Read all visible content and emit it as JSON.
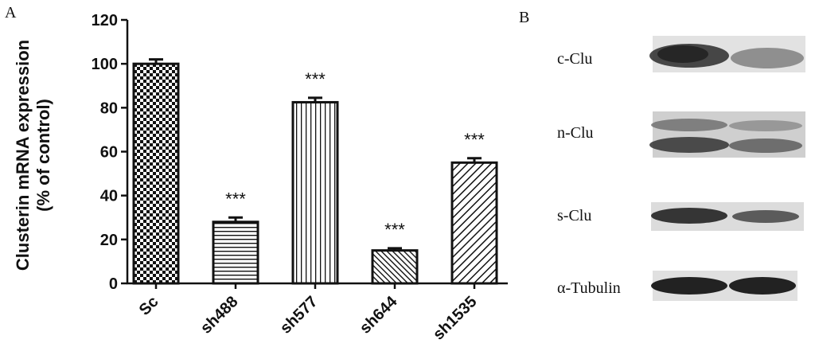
{
  "panel_a_label": "A",
  "panel_b_label": "B",
  "chart_data": {
    "type": "bar",
    "ylabel_line1": "Clusterin mRNA expression",
    "ylabel_line2": "(% of control)",
    "ylim": [
      0,
      120
    ],
    "yticks": [
      "0",
      "20",
      "40",
      "60",
      "80",
      "100",
      "120"
    ],
    "categories": [
      "Sc",
      "sh488",
      "sh577",
      "sh644",
      "sh1535"
    ],
    "values": [
      100,
      28,
      82.5,
      15,
      55
    ],
    "errors": [
      2,
      2,
      2,
      1,
      2
    ],
    "significance": [
      "",
      "***",
      "***",
      "***",
      "***"
    ],
    "patterns": [
      "checker",
      "horizontal",
      "vertical",
      "diagonal-fine",
      "diagonal"
    ]
  },
  "blot": {
    "rows": [
      {
        "label": "c-Clu"
      },
      {
        "label": "n-Clu"
      },
      {
        "label": "s-Clu"
      },
      {
        "label": "α-Tubulin"
      }
    ]
  }
}
